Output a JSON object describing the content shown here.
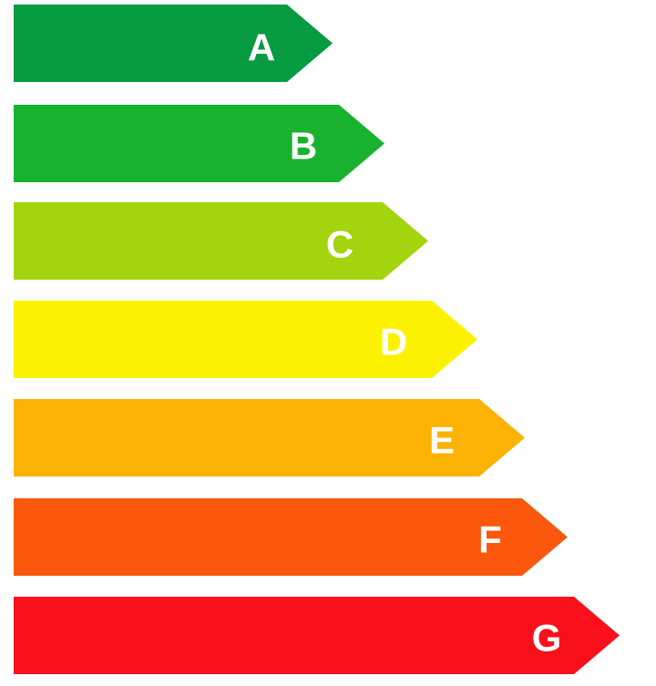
{
  "bands": [
    {
      "label": "A"
    },
    {
      "label": "B"
    },
    {
      "label": "C"
    },
    {
      "label": "D"
    },
    {
      "label": "E"
    },
    {
      "label": "F"
    },
    {
      "label": "G"
    }
  ]
}
